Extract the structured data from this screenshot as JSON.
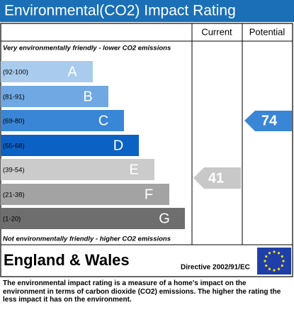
{
  "header": {
    "title": "Environmental(CO2) Impact Rating"
  },
  "columns": [
    "Current",
    "Potential"
  ],
  "top_note": "Very environmentally friendly - lower CO2 emissions",
  "bands": [
    {
      "range": "(92-100)",
      "letter": "A"
    },
    {
      "range": "(81-91)",
      "letter": "B"
    },
    {
      "range": "(69-80)",
      "letter": "C"
    },
    {
      "range": "(55-68)",
      "letter": "D"
    },
    {
      "range": "(39-54)",
      "letter": "E"
    },
    {
      "range": "(21-38)",
      "letter": "F"
    },
    {
      "range": "(1-20)",
      "letter": "G"
    }
  ],
  "bottom_note": "Not environmentally friendly - higher CO2 emissions",
  "current": 41,
  "potential": 74,
  "footer": {
    "region": "England & Wales",
    "directive": "Directive 2002/91/EC",
    "text": "The environmental impact rating is a measure of a home's impact on the environment in terms of carbon dioxide (CO2) emissions. The higher the rating the less impact it has on the environment."
  }
}
